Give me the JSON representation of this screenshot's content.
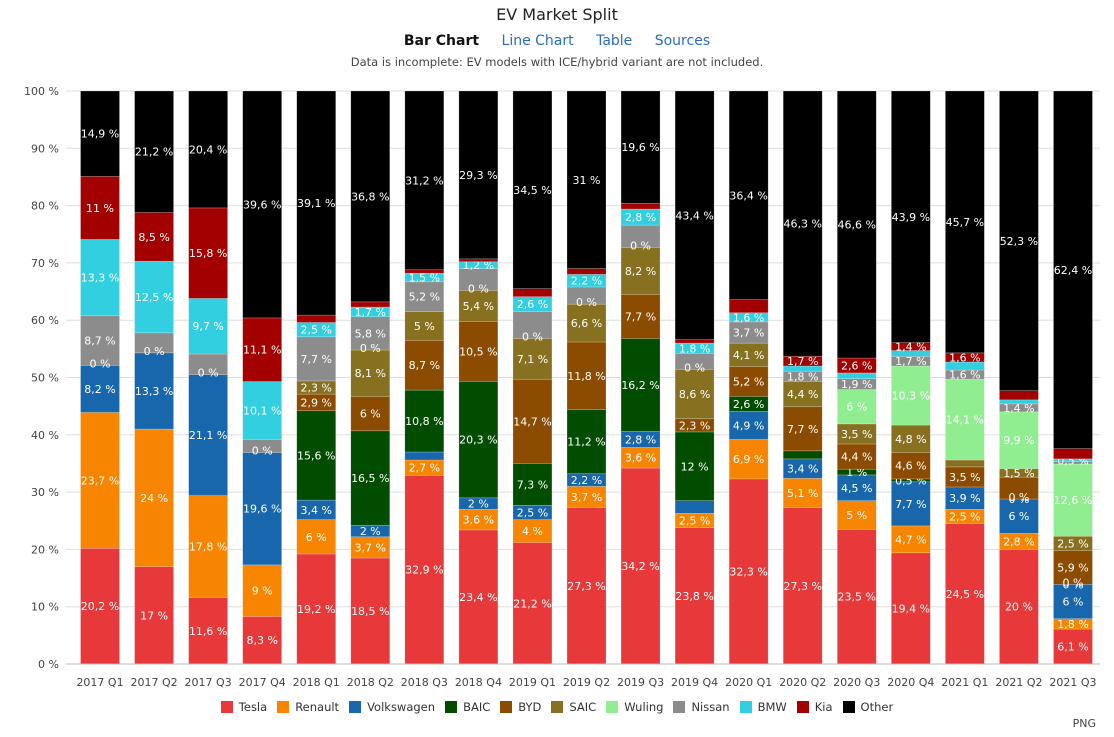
{
  "header": {
    "title": "EV Market Split",
    "nav": [
      {
        "label": "Bar Chart",
        "active": true
      },
      {
        "label": "Line Chart",
        "active": false
      },
      {
        "label": "Table",
        "active": false
      },
      {
        "label": "Sources",
        "active": false
      }
    ],
    "note": "Data is incomplete: EV models with ICE/hybrid variant are not included."
  },
  "export_label": "PNG",
  "chart_data": {
    "type": "bar",
    "stacked": true,
    "normalized": true,
    "title": "EV Market Split",
    "xlabel": "",
    "ylabel": "",
    "ylim": [
      0,
      100
    ],
    "y_ticks": [
      "0 %",
      "10 %",
      "20 %",
      "30 %",
      "40 %",
      "50 %",
      "60 %",
      "70 %",
      "80 %",
      "90 %",
      "100 %"
    ],
    "grid": true,
    "legend_position": "bottom",
    "categories": [
      "2017 Q1",
      "2017 Q2",
      "2017 Q3",
      "2017 Q4",
      "2018 Q1",
      "2018 Q2",
      "2018 Q3",
      "2018 Q4",
      "2019 Q1",
      "2019 Q2",
      "2019 Q3",
      "2019 Q4",
      "2020 Q1",
      "2020 Q2",
      "2020 Q3",
      "2020 Q4",
      "2021 Q1",
      "2021 Q2",
      "2021 Q3"
    ],
    "series": [
      {
        "name": "Tesla",
        "color": "#e8393a",
        "values": [
          20.2,
          17,
          11.6,
          8.3,
          19.2,
          18.5,
          32.9,
          23.4,
          21.2,
          27.3,
          34.2,
          23.8,
          32.3,
          27.3,
          23.5,
          19.4,
          24.5,
          20,
          6.1
        ],
        "labels": [
          true,
          true,
          true,
          true,
          true,
          true,
          true,
          true,
          true,
          true,
          true,
          true,
          true,
          true,
          true,
          true,
          true,
          true,
          true
        ]
      },
      {
        "name": "Renault",
        "color": "#f78500",
        "values": [
          23.7,
          24,
          17.8,
          9,
          6,
          3.7,
          2.7,
          3.6,
          4,
          3.7,
          3.6,
          2.5,
          6.9,
          5.1,
          5,
          4.7,
          2.5,
          2.8,
          1.8
        ],
        "labels": [
          true,
          true,
          true,
          true,
          true,
          true,
          true,
          true,
          true,
          true,
          true,
          true,
          true,
          true,
          true,
          true,
          true,
          true,
          true
        ]
      },
      {
        "name": "Volkswagen",
        "color": "#1866ab",
        "values": [
          8.2,
          13.3,
          21.1,
          19.6,
          3.4,
          2,
          1.4,
          2,
          2.5,
          2.2,
          2.8,
          2.2,
          4.9,
          3.4,
          4.5,
          7.7,
          3.9,
          6,
          6
        ],
        "labels": [
          true,
          true,
          true,
          true,
          true,
          true,
          false,
          true,
          true,
          true,
          true,
          false,
          true,
          true,
          true,
          true,
          true,
          true,
          true
        ]
      },
      {
        "name": "BAIC",
        "color": "#004d00",
        "values": [
          0,
          0,
          0,
          0,
          15.6,
          16.5,
          10.8,
          20.3,
          7.3,
          11.2,
          16.2,
          12,
          2.6,
          1.4,
          1,
          0.5,
          0,
          0,
          0
        ],
        "labels": [
          false,
          false,
          false,
          false,
          true,
          true,
          true,
          true,
          true,
          true,
          true,
          true,
          true,
          false,
          true,
          true,
          false,
          true,
          true
        ]
      },
      {
        "name": "BYD",
        "color": "#8b4c00",
        "values": [
          0,
          0,
          0,
          0,
          2.9,
          6,
          8.7,
          10.5,
          14.7,
          11.8,
          7.7,
          2.3,
          5.2,
          7.7,
          4.4,
          4.6,
          3.5,
          3.8,
          5.9
        ],
        "labels": [
          false,
          false,
          false,
          false,
          true,
          true,
          true,
          true,
          true,
          true,
          true,
          true,
          true,
          true,
          true,
          true,
          true,
          false,
          true
        ]
      },
      {
        "name": "SAIC",
        "color": "#877020",
        "values": [
          0,
          0,
          0,
          0,
          2.3,
          8.1,
          5,
          5.4,
          7.1,
          6.6,
          8.2,
          8.6,
          4.1,
          4.4,
          3.5,
          4.8,
          1.2,
          1.5,
          2.5
        ],
        "labels": [
          false,
          false,
          false,
          false,
          true,
          true,
          true,
          true,
          true,
          true,
          true,
          true,
          true,
          true,
          true,
          true,
          false,
          true,
          true
        ]
      },
      {
        "name": "Wuling",
        "color": "#90ee90",
        "values": [
          0,
          0,
          0,
          0,
          0,
          0,
          0,
          0,
          0,
          0,
          0,
          0,
          0,
          0,
          6,
          10.3,
          14.1,
          9.9,
          12.6
        ],
        "labels": [
          false,
          false,
          false,
          false,
          false,
          false,
          false,
          false,
          false,
          false,
          false,
          false,
          false,
          false,
          true,
          true,
          true,
          true,
          true
        ]
      },
      {
        "name": "Nissan",
        "color": "#8c8c8c",
        "values": [
          8.7,
          3.5,
          3.6,
          2.3,
          7.7,
          5.8,
          5.2,
          3.8,
          4.7,
          3,
          3.9,
          2.8,
          3.7,
          1.8,
          1.9,
          1.7,
          1.6,
          1.4,
          0.4
        ],
        "labels": [
          true,
          false,
          false,
          false,
          true,
          true,
          true,
          false,
          false,
          false,
          false,
          false,
          true,
          true,
          true,
          true,
          true,
          true,
          false
        ]
      },
      {
        "name": "BMW",
        "color": "#31cfe0",
        "values": [
          13.3,
          12.5,
          9.7,
          10.1,
          2.5,
          1.7,
          1.5,
          1.2,
          2.6,
          2.2,
          2.8,
          1.8,
          1.6,
          0.9,
          1,
          1,
          1.4,
          0.7,
          0.5
        ],
        "labels": [
          true,
          true,
          true,
          true,
          true,
          true,
          true,
          true,
          true,
          true,
          true,
          true,
          true,
          false,
          false,
          false,
          false,
          false,
          true
        ]
      },
      {
        "name": "Kia",
        "color": "#a30000",
        "values": [
          11,
          8.5,
          15.8,
          11.1,
          1.3,
          0.9,
          0.6,
          0.5,
          1.4,
          1,
          1,
          0.6,
          2.3,
          1.7,
          2.6,
          1.4,
          1.6,
          1.6,
          1.8
        ],
        "labels": [
          true,
          true,
          true,
          true,
          false,
          false,
          false,
          false,
          false,
          false,
          false,
          false,
          false,
          true,
          true,
          true,
          true,
          false,
          false
        ]
      },
      {
        "name": "Other",
        "color": "#000000",
        "values": [
          14.9,
          21.2,
          20.4,
          39.6,
          39.1,
          36.8,
          31.2,
          29.3,
          34.5,
          31,
          19.6,
          43.4,
          36.4,
          46.3,
          46.6,
          43.9,
          45.7,
          52.3,
          62.4
        ],
        "labels": [
          true,
          true,
          true,
          true,
          true,
          true,
          true,
          true,
          true,
          true,
          true,
          true,
          true,
          true,
          true,
          true,
          true,
          true,
          true
        ]
      }
    ],
    "extra_zero_labels": [
      {
        "category": "2017 Q1",
        "series": "SAIC",
        "text": "0 %"
      },
      {
        "category": "2017 Q2",
        "series": "SAIC",
        "text": "0 %"
      },
      {
        "category": "2017 Q3",
        "series": "SAIC",
        "text": "0 %"
      },
      {
        "category": "2017 Q4",
        "series": "SAIC",
        "text": "0 %"
      },
      {
        "category": "2018 Q2",
        "series": "Wuling",
        "text": "0 %"
      },
      {
        "category": "2018 Q4",
        "series": "Wuling",
        "text": "0 %"
      },
      {
        "category": "2019 Q1",
        "series": "Wuling",
        "text": "0 %"
      },
      {
        "category": "2019 Q2",
        "series": "Wuling",
        "text": "0 %"
      },
      {
        "category": "2019 Q3",
        "series": "Wuling",
        "text": "0 %"
      },
      {
        "category": "2019 Q4",
        "series": "Wuling",
        "text": "0 %"
      },
      {
        "category": "2021 Q2",
        "series": "BAIC",
        "text": "0 %"
      },
      {
        "category": "2021 Q3",
        "series": "BAIC",
        "text": "0 %"
      }
    ]
  }
}
